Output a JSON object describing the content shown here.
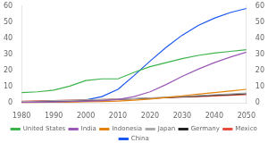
{
  "chart_data": {
    "type": "line",
    "x": [
      1980,
      1985,
      1990,
      1995,
      2000,
      2005,
      2010,
      2015,
      2020,
      2025,
      2030,
      2035,
      2040,
      2045,
      2050
    ],
    "series": [
      {
        "name": "United States",
        "color": "#3cb44b",
        "values": [
          6.5,
          7.0,
          8.0,
          10.5,
          14.0,
          15.0,
          15.0,
          19.0,
          22.5,
          25.0,
          27.5,
          29.5,
          31.0,
          32.0,
          33.0
        ]
      },
      {
        "name": "India",
        "color": "#9b59b6",
        "values": [
          0.5,
          0.6,
          0.7,
          0.9,
          1.1,
          1.5,
          2.2,
          4.0,
          7.0,
          11.5,
          16.5,
          21.0,
          25.0,
          28.5,
          31.5
        ]
      },
      {
        "name": "Indonesia",
        "color": "#e6820a",
        "values": [
          0.3,
          0.4,
          0.5,
          0.6,
          0.8,
          1.0,
          1.3,
          1.8,
          2.5,
          3.5,
          4.5,
          5.5,
          6.5,
          7.5,
          8.5
        ]
      },
      {
        "name": "Japan",
        "color": "#aaaaaa",
        "values": [
          1.0,
          1.2,
          1.5,
          1.7,
          2.0,
          2.2,
          2.5,
          2.8,
          3.2,
          3.7,
          4.2,
          4.7,
          5.2,
          5.7,
          6.2
        ]
      },
      {
        "name": "Germany",
        "color": "#222222",
        "values": [
          0.8,
          1.0,
          1.3,
          1.5,
          1.7,
          2.0,
          2.3,
          2.6,
          3.0,
          3.4,
          3.8,
          4.3,
          4.8,
          5.3,
          5.8
        ]
      },
      {
        "name": "Mexico",
        "color": "#e74c3c",
        "values": [
          1.2,
          1.4,
          1.6,
          1.8,
          2.0,
          2.2,
          2.5,
          2.7,
          3.0,
          3.3,
          3.7,
          4.0,
          4.4,
          4.8,
          5.2
        ]
      },
      {
        "name": "China",
        "color": "#1a56f0",
        "values": [
          0.5,
          0.8,
          1.0,
          1.3,
          2.0,
          4.0,
          8.5,
          17.0,
          26.0,
          34.5,
          42.0,
          48.0,
          52.5,
          56.0,
          58.5
        ]
      }
    ],
    "xlim": [
      1980,
      2050
    ],
    "xticks": [
      1980,
      1990,
      2000,
      2010,
      2020,
      2030,
      2040,
      2050
    ],
    "ylim": [
      0,
      60
    ],
    "yticks": [
      0,
      10,
      20,
      30,
      40,
      50,
      60
    ],
    "y2lim": [
      0,
      60
    ],
    "y2ticks": [
      0,
      10,
      20,
      30,
      40,
      50,
      60
    ],
    "grid": false,
    "legend": "bottom"
  }
}
